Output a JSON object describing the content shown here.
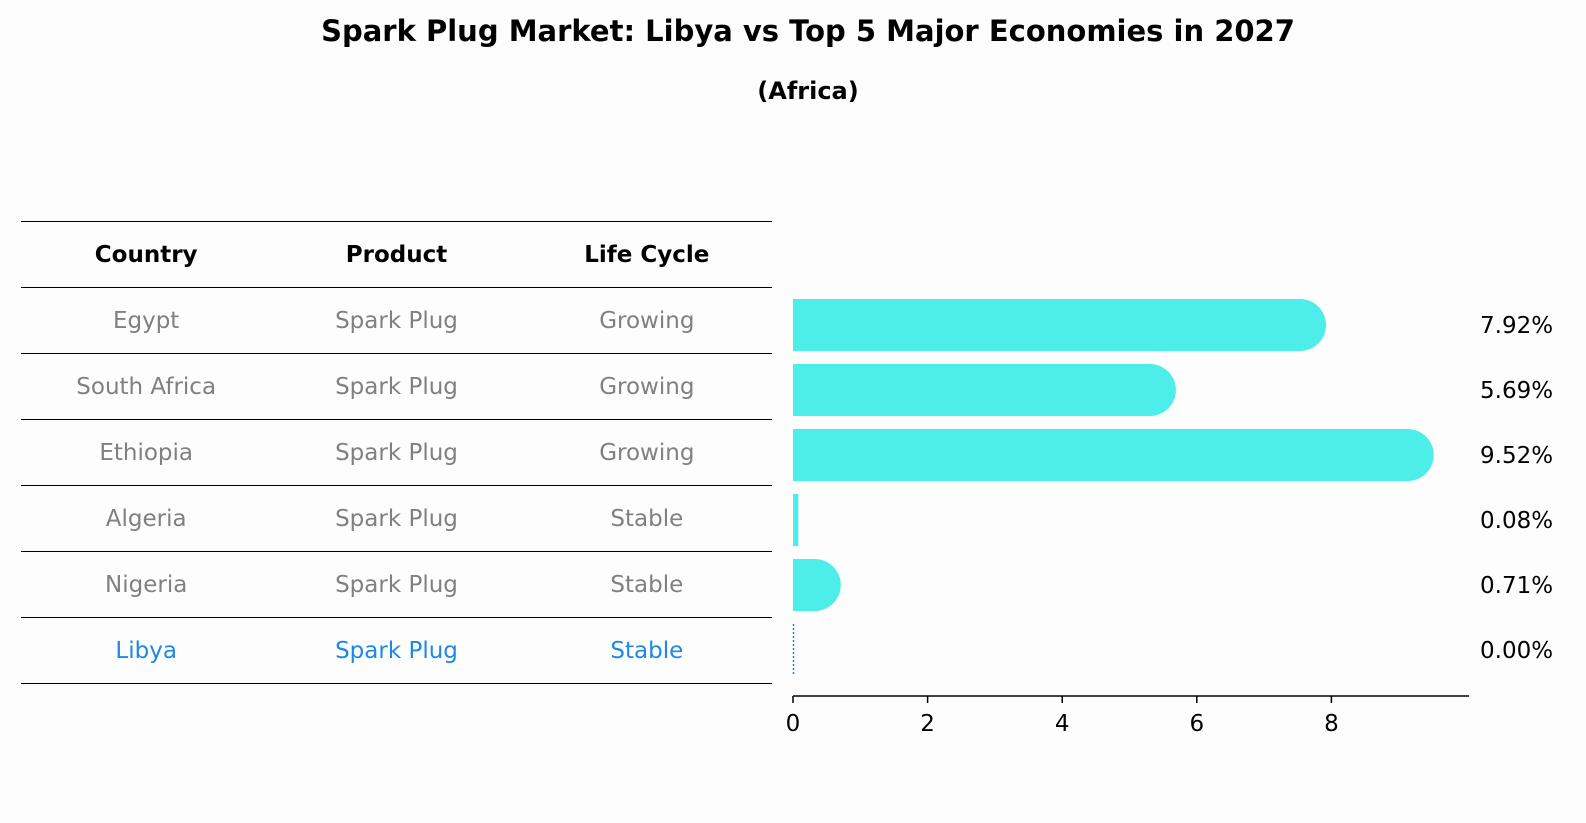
{
  "title": "Spark Plug Market: Libya vs Top 5 Major Economies in 2027",
  "subtitle": "(Africa)",
  "table": {
    "headers": [
      "Country",
      "Product",
      "Life Cycle"
    ],
    "rows": [
      {
        "country": "Egypt",
        "product": "Spark Plug",
        "life_cycle": "Growing",
        "highlight": false
      },
      {
        "country": "South Africa",
        "product": "Spark Plug",
        "life_cycle": "Growing",
        "highlight": false
      },
      {
        "country": "Ethiopia",
        "product": "Spark Plug",
        "life_cycle": "Growing",
        "highlight": false
      },
      {
        "country": "Algeria",
        "product": "Spark Plug",
        "life_cycle": "Stable",
        "highlight": false
      },
      {
        "country": "Nigeria",
        "product": "Spark Plug",
        "life_cycle": "Stable",
        "highlight": false
      },
      {
        "country": "Libya",
        "product": "Spark Plug",
        "life_cycle": "Stable",
        "highlight": true
      }
    ]
  },
  "colors": {
    "bar": "#4deeea",
    "highlight_text": "#1e88e5",
    "muted_text": "#808080"
  },
  "chart_data": {
    "type": "bar",
    "orientation": "horizontal",
    "categories": [
      "Egypt",
      "South Africa",
      "Ethiopia",
      "Algeria",
      "Nigeria",
      "Libya"
    ],
    "values": [
      7.92,
      5.69,
      9.52,
      0.08,
      0.71,
      0.0
    ],
    "value_labels": [
      "7.92%",
      "5.69%",
      "9.52%",
      "0.08%",
      "0.71%",
      "0.00%"
    ],
    "xticks": [
      0,
      2,
      4,
      6,
      8
    ],
    "xlim": [
      0,
      10
    ],
    "grid": false
  }
}
